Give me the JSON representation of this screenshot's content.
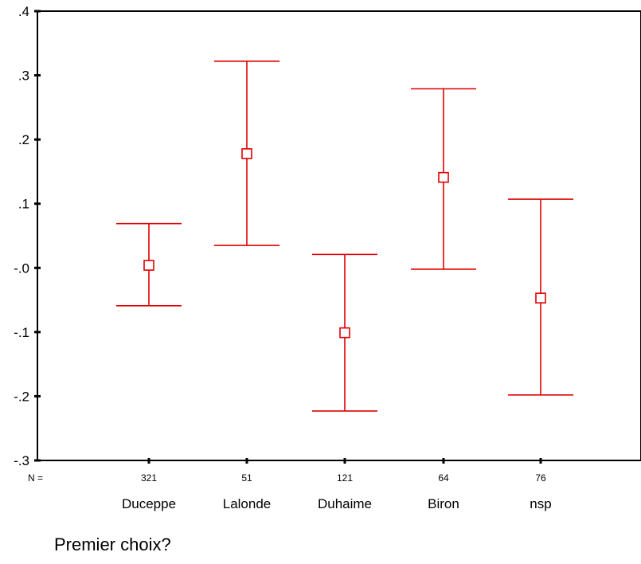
{
  "chart_data": {
    "type": "errorbar",
    "xlabel": "Premier choix?",
    "ylabel": "",
    "ylim": [
      -0.3,
      0.4
    ],
    "yticks": [
      {
        "value": 0.4,
        "label": ".4"
      },
      {
        "value": 0.3,
        "label": ".3"
      },
      {
        "value": 0.2,
        "label": ".2"
      },
      {
        "value": 0.1,
        "label": ".1"
      },
      {
        "value": 0.0,
        "label": "-.0"
      },
      {
        "value": -0.1,
        "label": "-.1"
      },
      {
        "value": -0.2,
        "label": "-.2"
      },
      {
        "value": -0.3,
        "label": "-.3"
      }
    ],
    "n_prefix": "N =",
    "categories": [
      "Duceppe",
      "Lalonde",
      "Duhaime",
      "Biron",
      "nsp"
    ],
    "n": [
      "321",
      "51",
      "121",
      "64",
      "76"
    ],
    "means": [
      0.004,
      0.178,
      -0.101,
      0.141,
      -0.047
    ],
    "lower": [
      -0.059,
      0.035,
      -0.223,
      -0.002,
      -0.198
    ],
    "upper": [
      0.069,
      0.322,
      0.021,
      0.279,
      0.107
    ],
    "color": "#e00000",
    "grid": false,
    "legend": "none"
  }
}
